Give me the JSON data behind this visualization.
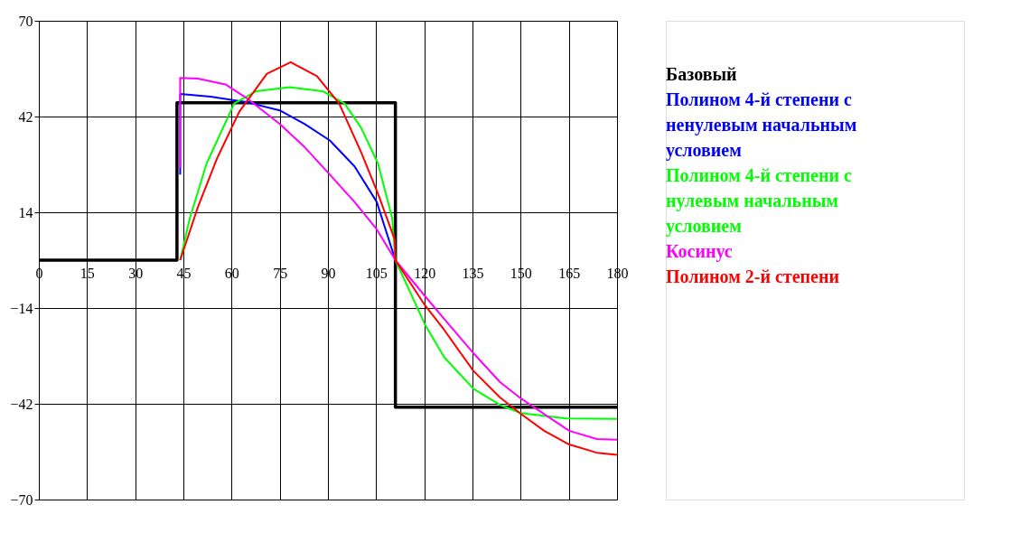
{
  "chart_data": {
    "type": "line",
    "xlim": [
      0,
      180
    ],
    "ylim": [
      -70,
      70
    ],
    "xticks": [
      0,
      15,
      30,
      45,
      60,
      75,
      90,
      105,
      120,
      135,
      150,
      165,
      180
    ],
    "yticks": [
      -70,
      -42,
      -14,
      14,
      42,
      70
    ],
    "grid": true,
    "legend": "right",
    "line_style": "solid",
    "marker": "none",
    "series": [
      {
        "name": "Базовый",
        "type": "step",
        "color": "#000000",
        "x": [
          0,
          43,
          111,
          180
        ],
        "values": [
          0,
          46,
          -43,
          -43
        ]
      },
      {
        "name": "Полином 4-й степени с ненулевым начальным условием",
        "color": "#0000ff",
        "x": [
          44,
          44,
          53.5,
          64.7,
          75,
          82.8,
          90.6,
          98.3,
          105.2,
          111
        ],
        "values": [
          25,
          48.6,
          47.8,
          46.2,
          43.8,
          39.8,
          35,
          27.4,
          17,
          0
        ]
      },
      {
        "name": "Полином 4-й степени с нулевым начальным условием",
        "color": "#00ff00",
        "x": [
          44,
          47,
          52.2,
          60.8,
          67.7,
          78,
          88.3,
          95.2,
          100.4,
          105.6,
          110,
          111,
          120.2,
          126.2,
          135.3,
          143.5,
          150,
          164.2,
          180
        ],
        "values": [
          0,
          12.3,
          28.2,
          45.8,
          49.4,
          50.6,
          49.4,
          45.8,
          38.6,
          28.2,
          12.3,
          0,
          -18.8,
          -28.4,
          -37.6,
          -42.3,
          -44.7,
          -46.3,
          -46.4
        ]
      },
      {
        "name": "Косинус",
        "color": "#ff00ff",
        "x": [
          44,
          44,
          49.5,
          58.1,
          64.7,
          75,
          82.8,
          90.6,
          98.3,
          105.2,
          111,
          120.2,
          126.2,
          135.3,
          143.5,
          150,
          157.3,
          165.1,
          173.7,
          180
        ],
        "values": [
          27,
          53.3,
          53.1,
          51.4,
          47.4,
          39.8,
          33,
          25,
          17,
          9,
          0,
          -10.5,
          -17.2,
          -27.2,
          -35.6,
          -40.4,
          -45,
          -49.9,
          -52.3,
          -52.5
        ]
      },
      {
        "name": "Полином 2-й  степени",
        "color": "#ff0000",
        "x": [
          44,
          49.5,
          55.5,
          62.4,
          71,
          78.4,
          86.6,
          93.5,
          100.4,
          105.6,
          110.8,
          111,
          120.2,
          126.2,
          135.3,
          143.5,
          150,
          157.3,
          165.1,
          173.7,
          180
        ],
        "values": [
          0,
          15.5,
          29.8,
          43.4,
          54.5,
          57.9,
          53.8,
          45.8,
          31.4,
          19.4,
          6,
          0,
          -13.2,
          -20.4,
          -32.4,
          -40.1,
          -44.9,
          -49.9,
          -53.9,
          -56.3,
          -56.9
        ]
      }
    ]
  }
}
